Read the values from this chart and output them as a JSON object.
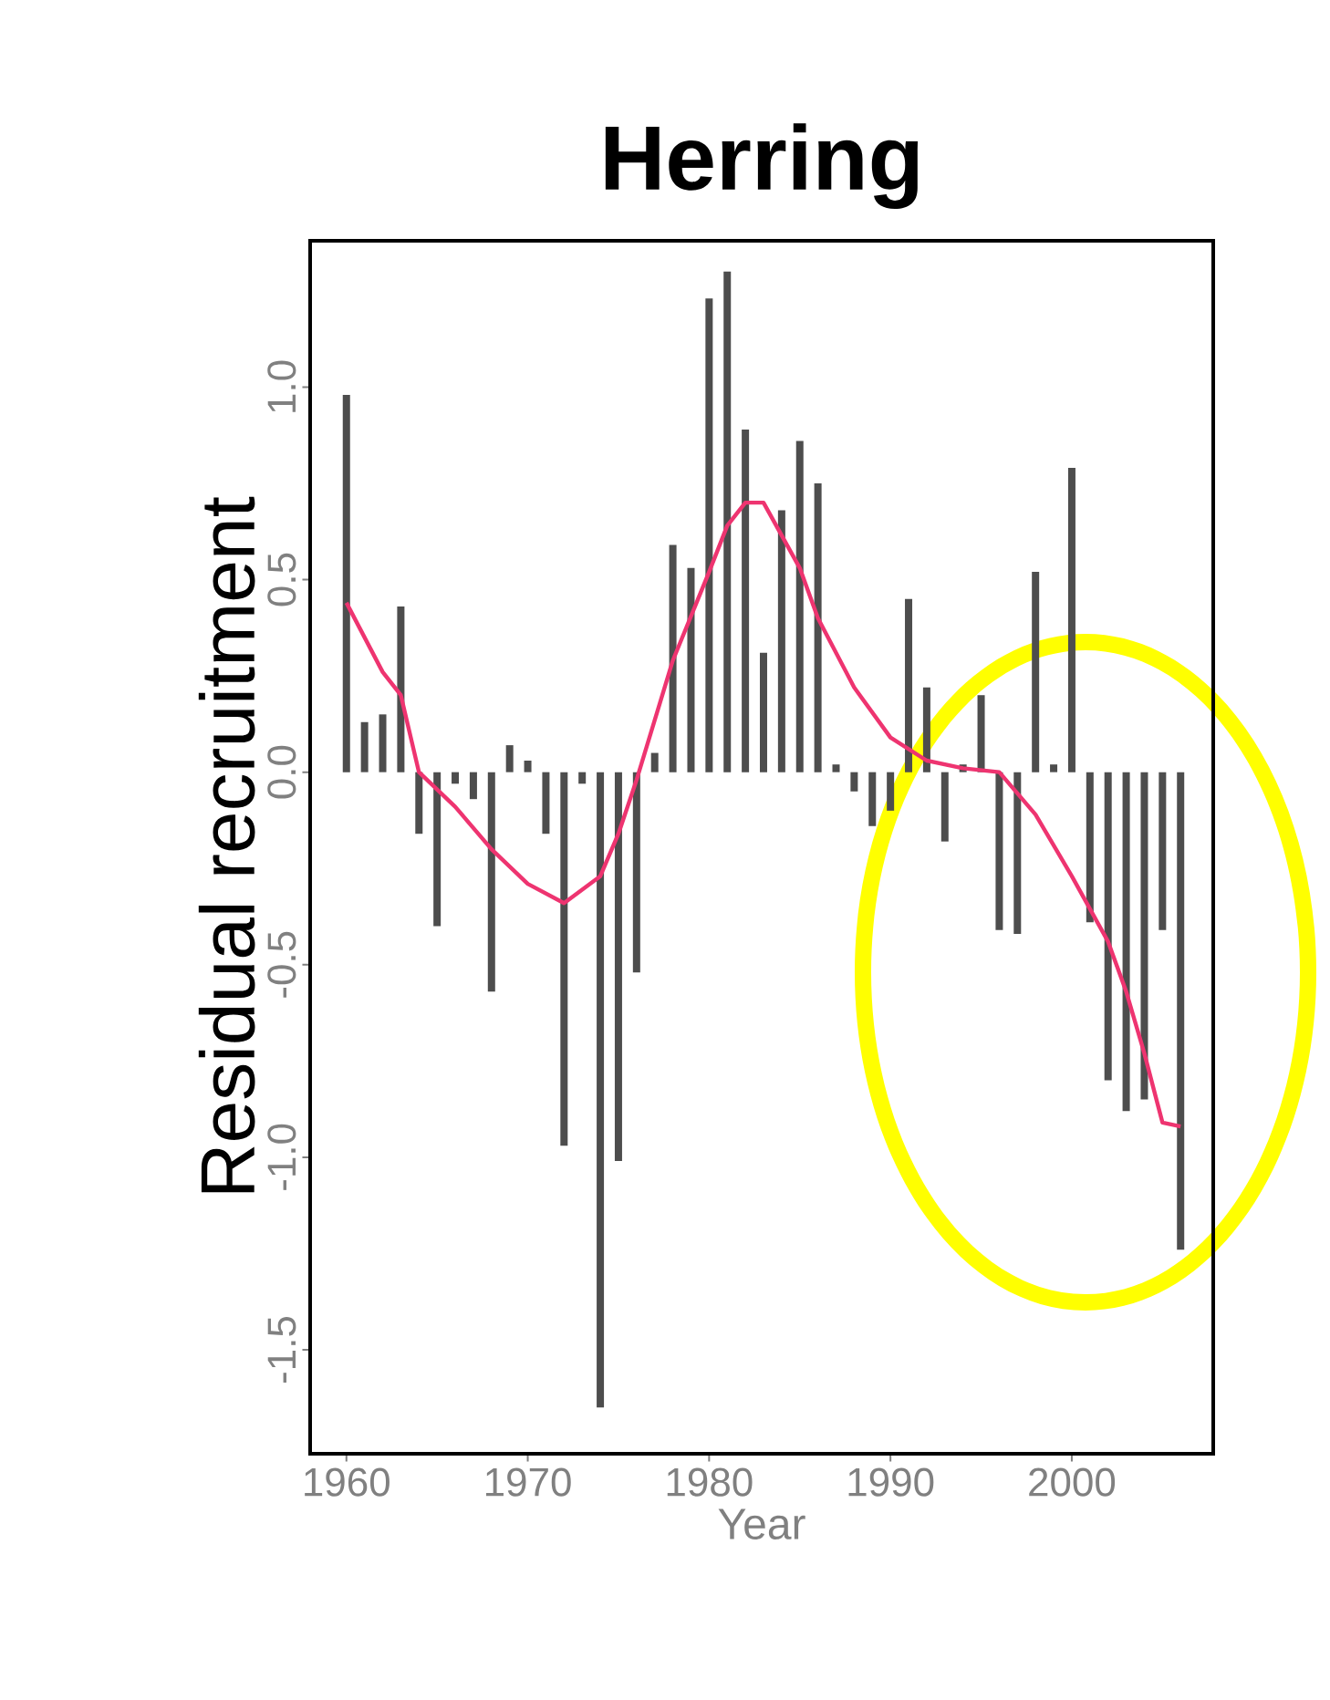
{
  "chart_data": {
    "type": "bar",
    "title": "Herring",
    "xlabel": "Year",
    "ylabel": "Residual recruitment",
    "x": [
      1960,
      1961,
      1962,
      1963,
      1964,
      1965,
      1966,
      1967,
      1968,
      1969,
      1970,
      1971,
      1972,
      1973,
      1974,
      1975,
      1976,
      1977,
      1978,
      1979,
      1980,
      1981,
      1982,
      1983,
      1984,
      1985,
      1986,
      1987,
      1988,
      1989,
      1990,
      1991,
      1992,
      1993,
      1994,
      1995,
      1996,
      1997,
      1998,
      1999,
      2000,
      2001,
      2002,
      2003,
      2004,
      2005,
      2006
    ],
    "series": [
      {
        "color": "#4d4d4d",
        "values": [
          0.98,
          0.13,
          0.15,
          0.43,
          -0.16,
          -0.4,
          -0.03,
          -0.07,
          -0.57,
          0.07,
          0.03,
          -0.16,
          -0.97,
          -0.03,
          -1.65,
          -1.01,
          -0.52,
          0.05,
          0.59,
          0.53,
          1.23,
          1.3,
          0.89,
          0.31,
          0.68,
          0.86,
          0.75,
          0.02,
          -0.05,
          -0.14,
          -0.1,
          0.45,
          0.22,
          -0.18,
          0.02,
          0.2,
          -0.41,
          -0.42,
          0.52,
          0.02,
          0.79,
          -0.39,
          -0.8,
          -0.88,
          -0.85,
          -0.41,
          -1.24
        ]
      },
      {
        "type": "line",
        "color": "#ee3470",
        "x": [
          1960,
          1962,
          1963,
          1964,
          1966,
          1968,
          1970,
          1972,
          1974,
          1975,
          1976,
          1978,
          1980,
          1981,
          1982,
          1983,
          1985,
          1986,
          1988,
          1990,
          1992,
          1994,
          1996,
          1998,
          2000,
          2002,
          2003,
          2004,
          2005,
          2006
        ],
        "values": [
          0.44,
          0.26,
          0.2,
          0.0,
          -0.09,
          -0.2,
          -0.29,
          -0.34,
          -0.27,
          -0.16,
          -0.02,
          0.29,
          0.52,
          0.64,
          0.7,
          0.7,
          0.53,
          0.4,
          0.22,
          0.09,
          0.03,
          0.01,
          0.0,
          -0.11,
          -0.27,
          -0.44,
          -0.57,
          -0.73,
          -0.91,
          -0.92
        ]
      }
    ],
    "xlim": [
      1958,
      2007.8
    ],
    "ylim": [
      -1.77,
      1.38
    ],
    "xticks": [
      1960,
      1970,
      1980,
      1990,
      2000
    ],
    "yticks": [
      {
        "value": -1.5,
        "label": "-1.5"
      },
      {
        "value": -1.0,
        "label": "-1.0"
      },
      {
        "value": -0.5,
        "label": "-0.5"
      },
      {
        "value": 0.0,
        "label": "0.0"
      },
      {
        "value": 0.5,
        "label": "0.5"
      },
      {
        "value": 1.0,
        "label": "1.0"
      }
    ]
  }
}
